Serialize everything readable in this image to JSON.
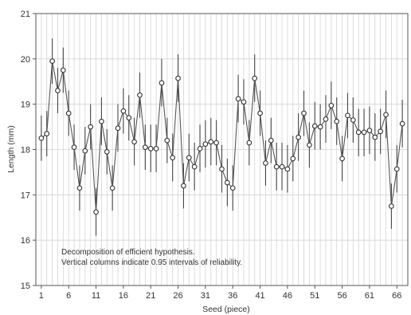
{
  "chart_data": {
    "type": "line",
    "xlabel": "Seed (piece)",
    "ylabel": "Length (mm)",
    "xlim": [
      0,
      68
    ],
    "ylim": [
      15,
      21
    ],
    "x_ticks": [
      1,
      6,
      11,
      16,
      21,
      26,
      31,
      36,
      41,
      46,
      51,
      56,
      61,
      66
    ],
    "y_ticks": [
      15,
      16,
      17,
      18,
      19,
      20,
      21
    ],
    "grid": {
      "vertical": true,
      "horizontal": true
    },
    "annotation_lines": [
      "Decomposition of efficient hypothesis.",
      "Vertical columns indicate 0.95 intervals of reliability."
    ],
    "x": [
      1,
      2,
      3,
      4,
      5,
      6,
      7,
      8,
      9,
      10,
      11,
      12,
      13,
      14,
      15,
      16,
      17,
      18,
      19,
      20,
      21,
      22,
      23,
      24,
      25,
      26,
      27,
      28,
      29,
      30,
      31,
      32,
      33,
      34,
      35,
      36,
      37,
      38,
      39,
      40,
      41,
      42,
      43,
      44,
      45,
      46,
      47,
      48,
      49,
      50,
      51,
      52,
      53,
      54,
      55,
      56,
      57,
      58,
      59,
      60,
      61,
      62,
      63,
      64,
      65,
      66,
      67
    ],
    "mean": [
      18.25,
      18.35,
      19.95,
      19.3,
      19.75,
      18.8,
      18.05,
      17.15,
      17.97,
      18.5,
      16.62,
      18.62,
      17.95,
      17.15,
      18.47,
      18.85,
      18.7,
      18.17,
      19.2,
      18.05,
      18.02,
      18.02,
      19.47,
      18.2,
      17.82,
      19.57,
      17.2,
      17.82,
      17.62,
      18.02,
      18.12,
      18.17,
      18.15,
      17.57,
      17.27,
      17.15,
      19.12,
      19.05,
      18.15,
      19.57,
      18.8,
      17.7,
      18.2,
      17.62,
      17.62,
      17.57,
      17.8,
      18.27,
      18.8,
      18.1,
      18.52,
      18.5,
      18.67,
      18.97,
      18.62,
      17.8,
      18.75,
      18.65,
      18.38,
      18.38,
      18.42,
      18.27,
      18.4,
      18.77,
      16.75,
      17.57,
      18.57
    ],
    "ci_low": [
      17.75,
      17.85,
      19.45,
      18.8,
      19.25,
      18.3,
      17.55,
      16.65,
      17.45,
      18.0,
      16.1,
      18.1,
      17.45,
      16.65,
      17.95,
      18.35,
      18.2,
      17.65,
      18.7,
      17.55,
      17.5,
      17.5,
      18.95,
      17.7,
      17.3,
      19.05,
      16.7,
      17.3,
      17.1,
      17.5,
      17.6,
      17.65,
      17.65,
      17.05,
      16.75,
      16.65,
      18.6,
      18.55,
      17.65,
      19.05,
      18.3,
      17.2,
      17.7,
      17.1,
      17.1,
      17.05,
      17.3,
      17.75,
      18.3,
      17.6,
      18.0,
      18.0,
      18.15,
      18.45,
      18.1,
      17.3,
      18.25,
      18.15,
      17.85,
      17.85,
      17.9,
      17.75,
      17.9,
      18.25,
      16.25,
      17.05,
      18.05
    ],
    "ci_high": [
      18.75,
      18.85,
      20.45,
      19.8,
      20.25,
      19.3,
      18.55,
      17.65,
      18.5,
      19.0,
      17.15,
      19.15,
      18.45,
      17.65,
      19.0,
      19.35,
      19.2,
      18.7,
      19.7,
      18.55,
      18.55,
      18.55,
      20.0,
      18.7,
      18.35,
      20.1,
      17.7,
      18.35,
      18.15,
      18.55,
      18.65,
      18.7,
      18.65,
      18.1,
      17.8,
      17.65,
      19.65,
      19.55,
      18.65,
      20.1,
      19.3,
      18.2,
      18.7,
      18.15,
      18.15,
      18.1,
      18.3,
      18.8,
      19.3,
      18.6,
      19.05,
      19.0,
      19.2,
      19.5,
      19.15,
      18.3,
      19.25,
      19.15,
      18.9,
      18.9,
      18.95,
      18.8,
      18.9,
      19.3,
      17.25,
      18.1,
      19.1
    ]
  }
}
